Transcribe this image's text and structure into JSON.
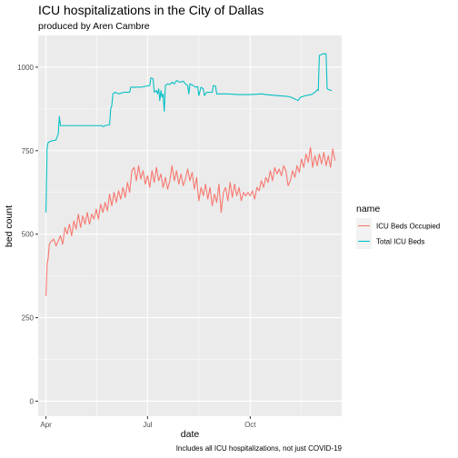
{
  "chart_data": {
    "type": "line",
    "title": "ICU hospitalizations in the City of Dallas",
    "subtitle": "produced by Aren Cambre",
    "xlabel": "date",
    "ylabel": "bed count",
    "caption": "Includes all ICU hospitalizations, not just COVID-19",
    "legend_title": "name",
    "legend_position": "right",
    "grid": true,
    "xlim": [
      "2020-03-25",
      "2020-12-22"
    ],
    "ylim": [
      -45,
      1095
    ],
    "x_ticks": [
      {
        "date": "2020-04-01",
        "label": "Apr"
      },
      {
        "date": "2020-07-01",
        "label": "Jul"
      },
      {
        "date": "2020-10-01",
        "label": "Oct"
      }
    ],
    "y_ticks": [
      {
        "value": 0,
        "label": "0"
      },
      {
        "value": 250,
        "label": "250"
      },
      {
        "value": 500,
        "label": "500"
      },
      {
        "value": 750,
        "label": "750"
      },
      {
        "value": 1000,
        "label": "1000"
      }
    ],
    "series": [
      {
        "name": "ICU Beds Occupied",
        "color": "#F8766D",
        "points": [
          [
            "2020-04-01",
            315
          ],
          [
            "2020-04-02",
            410
          ],
          [
            "2020-04-03",
            430
          ],
          [
            "2020-04-04",
            470
          ],
          [
            "2020-04-06",
            480
          ],
          [
            "2020-04-08",
            485
          ],
          [
            "2020-04-10",
            465
          ],
          [
            "2020-04-12",
            480
          ],
          [
            "2020-04-14",
            495
          ],
          [
            "2020-04-16",
            470
          ],
          [
            "2020-04-18",
            520
          ],
          [
            "2020-04-20",
            500
          ],
          [
            "2020-04-22",
            530
          ],
          [
            "2020-04-24",
            495
          ],
          [
            "2020-04-26",
            540
          ],
          [
            "2020-04-28",
            515
          ],
          [
            "2020-04-30",
            560
          ],
          [
            "2020-05-02",
            520
          ],
          [
            "2020-05-04",
            555
          ],
          [
            "2020-05-06",
            530
          ],
          [
            "2020-05-08",
            565
          ],
          [
            "2020-05-10",
            530
          ],
          [
            "2020-05-12",
            560
          ],
          [
            "2020-05-14",
            545
          ],
          [
            "2020-05-16",
            575
          ],
          [
            "2020-05-18",
            545
          ],
          [
            "2020-05-20",
            590
          ],
          [
            "2020-05-22",
            565
          ],
          [
            "2020-05-24",
            595
          ],
          [
            "2020-05-26",
            570
          ],
          [
            "2020-05-28",
            620
          ],
          [
            "2020-05-30",
            585
          ],
          [
            "2020-06-01",
            625
          ],
          [
            "2020-06-03",
            595
          ],
          [
            "2020-06-05",
            630
          ],
          [
            "2020-06-07",
            605
          ],
          [
            "2020-06-09",
            640
          ],
          [
            "2020-06-11",
            610
          ],
          [
            "2020-06-13",
            655
          ],
          [
            "2020-06-15",
            625
          ],
          [
            "2020-06-17",
            690
          ],
          [
            "2020-06-19",
            700
          ],
          [
            "2020-06-21",
            660
          ],
          [
            "2020-06-23",
            705
          ],
          [
            "2020-06-25",
            665
          ],
          [
            "2020-06-27",
            690
          ],
          [
            "2020-06-29",
            650
          ],
          [
            "2020-07-01",
            675
          ],
          [
            "2020-07-03",
            640
          ],
          [
            "2020-07-05",
            690
          ],
          [
            "2020-07-07",
            655
          ],
          [
            "2020-07-09",
            700
          ],
          [
            "2020-07-11",
            660
          ],
          [
            "2020-07-13",
            680
          ],
          [
            "2020-07-15",
            640
          ],
          [
            "2020-07-17",
            670
          ],
          [
            "2020-07-19",
            635
          ],
          [
            "2020-07-21",
            660
          ],
          [
            "2020-07-23",
            705
          ],
          [
            "2020-07-25",
            660
          ],
          [
            "2020-07-27",
            690
          ],
          [
            "2020-07-29",
            650
          ],
          [
            "2020-07-31",
            680
          ],
          [
            "2020-08-02",
            645
          ],
          [
            "2020-08-04",
            665
          ],
          [
            "2020-08-06",
            695
          ],
          [
            "2020-08-08",
            660
          ],
          [
            "2020-08-10",
            685
          ],
          [
            "2020-08-12",
            635
          ],
          [
            "2020-08-14",
            670
          ],
          [
            "2020-08-16",
            600
          ],
          [
            "2020-08-18",
            640
          ],
          [
            "2020-08-20",
            615
          ],
          [
            "2020-08-22",
            650
          ],
          [
            "2020-08-24",
            605
          ],
          [
            "2020-08-26",
            640
          ],
          [
            "2020-08-28",
            585
          ],
          [
            "2020-08-30",
            620
          ],
          [
            "2020-09-01",
            595
          ],
          [
            "2020-09-03",
            650
          ],
          [
            "2020-09-05",
            565
          ],
          [
            "2020-09-07",
            625
          ],
          [
            "2020-09-09",
            640
          ],
          [
            "2020-09-11",
            600
          ],
          [
            "2020-09-13",
            655
          ],
          [
            "2020-09-15",
            610
          ],
          [
            "2020-09-17",
            650
          ],
          [
            "2020-09-19",
            615
          ],
          [
            "2020-09-21",
            640
          ],
          [
            "2020-09-23",
            600
          ],
          [
            "2020-09-25",
            625
          ],
          [
            "2020-09-27",
            615
          ],
          [
            "2020-09-29",
            625
          ],
          [
            "2020-10-01",
            615
          ],
          [
            "2020-10-03",
            630
          ],
          [
            "2020-10-05",
            605
          ],
          [
            "2020-10-07",
            640
          ],
          [
            "2020-10-09",
            630
          ],
          [
            "2020-10-11",
            660
          ],
          [
            "2020-10-13",
            640
          ],
          [
            "2020-10-15",
            670
          ],
          [
            "2020-10-17",
            655
          ],
          [
            "2020-10-19",
            690
          ],
          [
            "2020-10-21",
            660
          ],
          [
            "2020-10-23",
            700
          ],
          [
            "2020-10-25",
            680
          ],
          [
            "2020-10-27",
            695
          ],
          [
            "2020-10-29",
            675
          ],
          [
            "2020-10-31",
            705
          ],
          [
            "2020-11-02",
            690
          ],
          [
            "2020-11-04",
            645
          ],
          [
            "2020-11-06",
            660
          ],
          [
            "2020-11-08",
            690
          ],
          [
            "2020-11-10",
            670
          ],
          [
            "2020-11-12",
            705
          ],
          [
            "2020-11-14",
            685
          ],
          [
            "2020-11-16",
            725
          ],
          [
            "2020-11-18",
            700
          ],
          [
            "2020-11-20",
            740
          ],
          [
            "2020-11-22",
            715
          ],
          [
            "2020-11-24",
            760
          ],
          [
            "2020-11-26",
            700
          ],
          [
            "2020-11-28",
            735
          ],
          [
            "2020-11-30",
            705
          ],
          [
            "2020-12-02",
            740
          ],
          [
            "2020-12-04",
            710
          ],
          [
            "2020-12-06",
            745
          ],
          [
            "2020-12-08",
            705
          ],
          [
            "2020-12-10",
            735
          ],
          [
            "2020-12-12",
            700
          ],
          [
            "2020-12-14",
            755
          ],
          [
            "2020-12-16",
            720
          ]
        ]
      },
      {
        "name": "Total ICU Beds",
        "color": "#00BFC4",
        "points": [
          [
            "2020-04-01",
            565
          ],
          [
            "2020-04-02",
            760
          ],
          [
            "2020-04-03",
            775
          ],
          [
            "2020-04-05",
            778
          ],
          [
            "2020-04-07",
            780
          ],
          [
            "2020-04-10",
            782
          ],
          [
            "2020-04-12",
            800
          ],
          [
            "2020-04-13",
            852
          ],
          [
            "2020-04-14",
            825
          ],
          [
            "2020-04-18",
            825
          ],
          [
            "2020-05-01",
            825
          ],
          [
            "2020-05-15",
            825
          ],
          [
            "2020-05-21",
            825
          ],
          [
            "2020-05-22",
            822
          ],
          [
            "2020-05-24",
            825
          ],
          [
            "2020-05-28",
            828
          ],
          [
            "2020-05-29",
            875
          ],
          [
            "2020-05-30",
            885
          ],
          [
            "2020-05-31",
            920
          ],
          [
            "2020-06-02",
            925
          ],
          [
            "2020-06-05",
            920
          ],
          [
            "2020-06-10",
            925
          ],
          [
            "2020-06-15",
            925
          ],
          [
            "2020-06-16",
            940
          ],
          [
            "2020-06-20",
            940
          ],
          [
            "2020-06-25",
            940
          ],
          [
            "2020-06-28",
            942
          ],
          [
            "2020-07-03",
            945
          ],
          [
            "2020-07-04",
            968
          ],
          [
            "2020-07-06",
            965
          ],
          [
            "2020-07-07",
            925
          ],
          [
            "2020-07-09",
            930
          ],
          [
            "2020-07-10",
            920
          ],
          [
            "2020-07-11",
            935
          ],
          [
            "2020-07-12",
            900
          ],
          [
            "2020-07-13",
            930
          ],
          [
            "2020-07-14",
            910
          ],
          [
            "2020-07-15",
            920
          ],
          [
            "2020-07-16",
            868
          ],
          [
            "2020-07-17",
            945
          ],
          [
            "2020-07-19",
            950
          ],
          [
            "2020-07-21",
            948
          ],
          [
            "2020-07-23",
            955
          ],
          [
            "2020-07-25",
            950
          ],
          [
            "2020-07-27",
            960
          ],
          [
            "2020-07-30",
            955
          ],
          [
            "2020-08-02",
            958
          ],
          [
            "2020-08-04",
            950
          ],
          [
            "2020-08-06",
            945
          ],
          [
            "2020-08-07",
            920
          ],
          [
            "2020-08-08",
            950
          ],
          [
            "2020-08-11",
            945
          ],
          [
            "2020-08-13",
            940
          ],
          [
            "2020-08-15",
            942
          ],
          [
            "2020-08-16",
            915
          ],
          [
            "2020-08-18",
            940
          ],
          [
            "2020-08-20",
            935
          ],
          [
            "2020-08-21",
            915
          ],
          [
            "2020-08-23",
            925
          ],
          [
            "2020-08-28",
            925
          ],
          [
            "2020-08-29",
            945
          ],
          [
            "2020-08-31",
            943
          ],
          [
            "2020-09-01",
            920
          ],
          [
            "2020-09-10",
            920
          ],
          [
            "2020-09-20",
            918
          ],
          [
            "2020-10-01",
            918
          ],
          [
            "2020-10-12",
            920
          ],
          [
            "2020-10-15",
            918
          ],
          [
            "2020-10-25",
            915
          ],
          [
            "2020-11-05",
            912
          ],
          [
            "2020-11-10",
            905
          ],
          [
            "2020-11-13",
            900
          ],
          [
            "2020-11-15",
            910
          ],
          [
            "2020-11-20",
            915
          ],
          [
            "2020-11-25",
            918
          ],
          [
            "2020-11-28",
            925
          ],
          [
            "2020-11-30",
            932
          ],
          [
            "2020-12-01",
            930
          ],
          [
            "2020-12-02",
            1035
          ],
          [
            "2020-12-05",
            1040
          ],
          [
            "2020-12-08",
            1040
          ],
          [
            "2020-12-09",
            935
          ],
          [
            "2020-12-11",
            932
          ],
          [
            "2020-12-13",
            930
          ]
        ]
      }
    ]
  }
}
